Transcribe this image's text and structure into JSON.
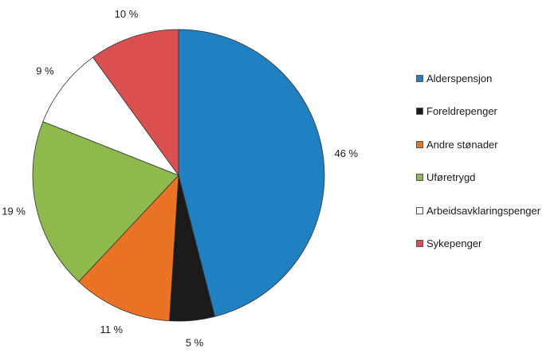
{
  "chart_data": {
    "type": "pie",
    "title": "",
    "start_angle_deg": 0,
    "direction": "clockwise",
    "legend_position": "right",
    "slices": [
      {
        "label": "Alderspensjon",
        "value": 46,
        "display": "46 %",
        "color": "#1f81c1"
      },
      {
        "label": "Foreldrepenger",
        "value": 5,
        "display": "5 %",
        "color": "#1a1a1a"
      },
      {
        "label": "Andre stønader",
        "value": 11,
        "display": "11 %",
        "color": "#eb7326"
      },
      {
        "label": "Uføretrygd",
        "value": 19,
        "display": "19 %",
        "color": "#8db94d"
      },
      {
        "label": "Arbeidsavklaringspenger",
        "value": 9,
        "display": "9 %",
        "color": "#ffffff"
      },
      {
        "label": "Sykepenger",
        "value": 10,
        "display": "10 %",
        "color": "#da4f4f"
      }
    ]
  }
}
